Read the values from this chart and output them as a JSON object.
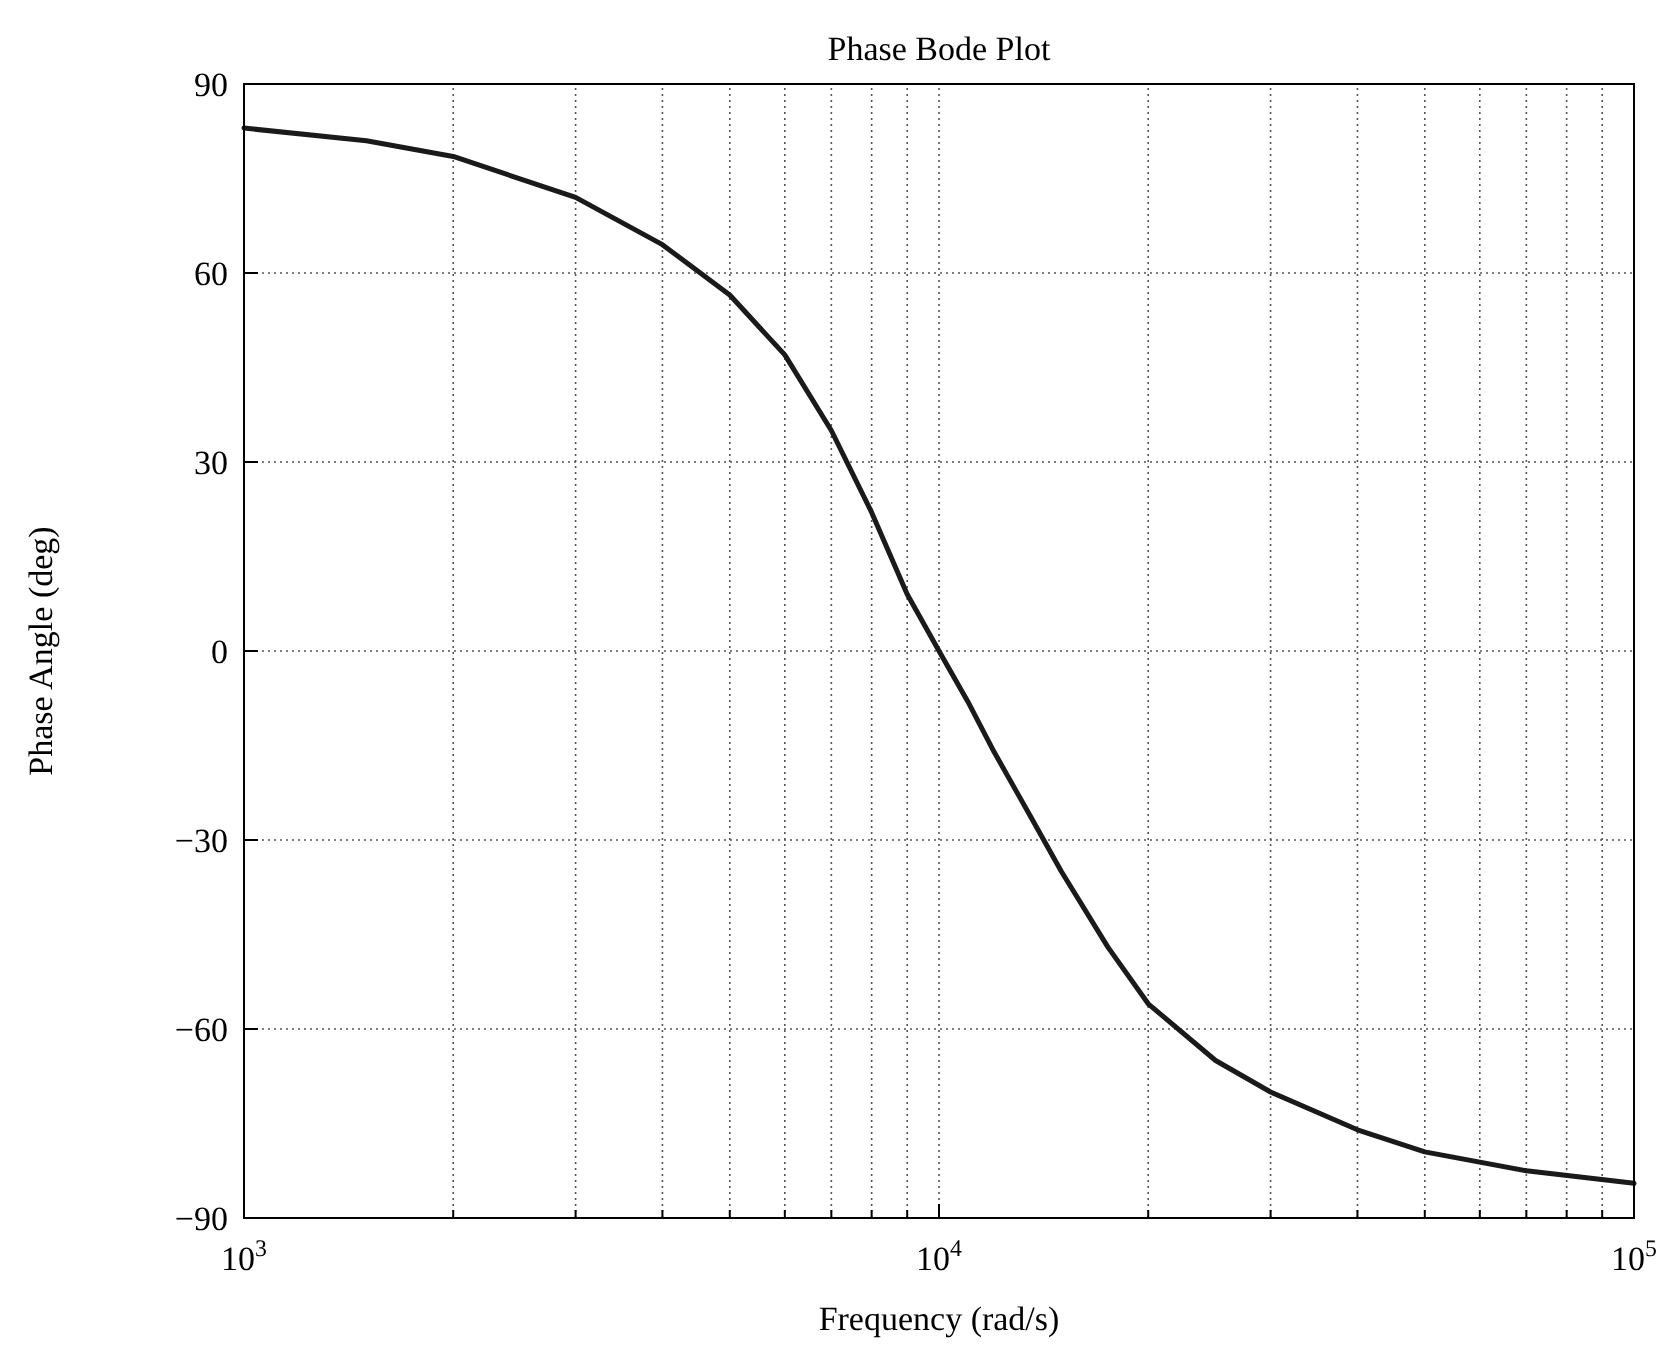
{
  "chart_data": {
    "type": "line",
    "title": "Phase Bode Plot",
    "xlabel": "Frequency (rad/s)",
    "ylabel": "Phase Angle (deg)",
    "x": [
      1000,
      1500,
      2000,
      3000,
      4000,
      5000,
      6000,
      7000,
      8000,
      9000,
      10000,
      11000,
      12000,
      13500,
      15000,
      17500,
      20000,
      25000,
      30000,
      40000,
      50000,
      70000,
      100000
    ],
    "series": [
      {
        "color": "#1a1a1a",
        "values": [
          83,
          81,
          78.5,
          72,
          64.5,
          56.5,
          47,
          35,
          22,
          9,
          0,
          -8,
          -16,
          -26,
          -35,
          -47,
          -56,
          -65,
          -70,
          -76,
          -79.5,
          -82.5,
          -84.5
        ]
      }
    ],
    "log": "x",
    "xlim": [
      1000,
      100000
    ],
    "ylim": [
      -90,
      90
    ],
    "xticks": [
      {
        "value": 1000,
        "label": "10$^{3}$"
      },
      {
        "value": 2000,
        "label": null
      },
      {
        "value": 3000,
        "label": null
      },
      {
        "value": 4000,
        "label": null
      },
      {
        "value": 5000,
        "label": null
      },
      {
        "value": 6000,
        "label": null
      },
      {
        "value": 7000,
        "label": null
      },
      {
        "value": 8000,
        "label": null
      },
      {
        "value": 9000,
        "label": null
      },
      {
        "value": 10000,
        "label": "10$^{4}$"
      },
      {
        "value": 20000,
        "label": null
      },
      {
        "value": 30000,
        "label": null
      },
      {
        "value": 40000,
        "label": null
      },
      {
        "value": 50000,
        "label": null
      },
      {
        "value": 60000,
        "label": null
      },
      {
        "value": 70000,
        "label": null
      },
      {
        "value": 80000,
        "label": null
      },
      {
        "value": 90000,
        "label": null
      },
      {
        "value": 100000,
        "label": "10$^{5}$"
      }
    ],
    "yticks": [
      {
        "value": -90,
        "label": "−90"
      },
      {
        "value": -60,
        "label": "−60"
      },
      {
        "value": -30,
        "label": "−30"
      },
      0,
      30,
      60,
      90
    ],
    "grid": true,
    "line_style": "solid",
    "marker": "none"
  }
}
